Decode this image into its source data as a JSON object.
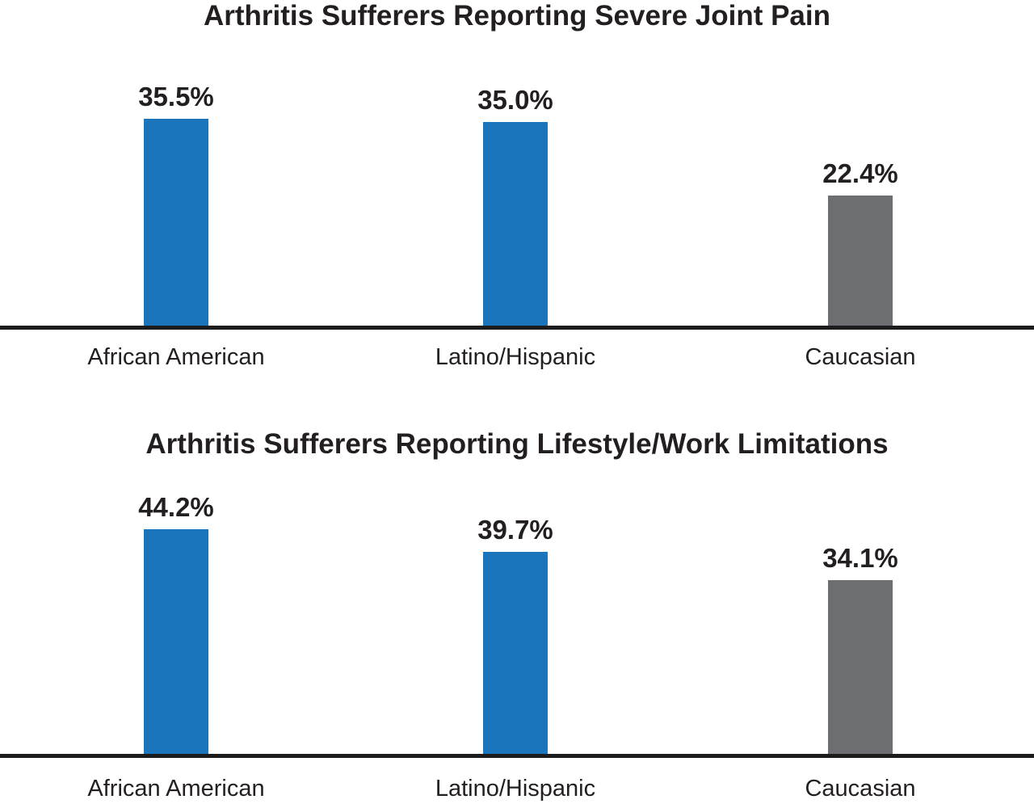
{
  "colors": {
    "bar_blue": "#1b75bc",
    "bar_gray": "#6d6e71",
    "text": "#231f20",
    "axis": "#1c1c1c",
    "background": "#ffffff"
  },
  "chart_data": [
    {
      "type": "bar",
      "title": "Arthritis Sufferers Reporting Severe Joint Pain",
      "categories": [
        "African American",
        "Latino/Hispanic",
        "Caucasian"
      ],
      "values": [
        35.5,
        35.0,
        22.4
      ],
      "value_labels": [
        "35.5%",
        "35.0%",
        "22.4%"
      ],
      "bar_colors": [
        "#1b75bc",
        "#1b75bc",
        "#6d6e71"
      ],
      "ylabel": "",
      "xlabel": "",
      "ylim": [
        0,
        40
      ],
      "unit": "percent",
      "grid": false,
      "legend": false,
      "value_labels_position": "above-bars"
    },
    {
      "type": "bar",
      "title": "Arthritis Sufferers Reporting Lifestyle/Work Limitations",
      "categories": [
        "African American",
        "Latino/Hispanic",
        "Caucasian"
      ],
      "values": [
        44.2,
        39.7,
        34.1
      ],
      "value_labels": [
        "44.2%",
        "39.7%",
        "34.1%"
      ],
      "bar_colors": [
        "#1b75bc",
        "#1b75bc",
        "#6d6e71"
      ],
      "ylabel": "",
      "xlabel": "",
      "ylim": [
        0,
        50
      ],
      "unit": "percent",
      "grid": false,
      "legend": false,
      "value_labels_position": "above-bars"
    }
  ]
}
